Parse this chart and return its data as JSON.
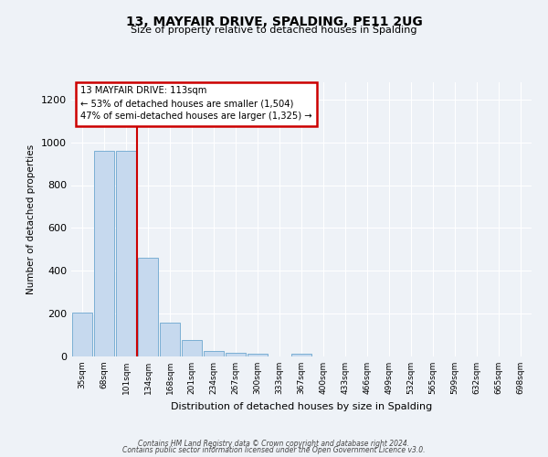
{
  "title": "13, MAYFAIR DRIVE, SPALDING, PE11 2UG",
  "subtitle": "Size of property relative to detached houses in Spalding",
  "xlabel": "Distribution of detached houses by size in Spalding",
  "ylabel": "Number of detached properties",
  "bar_labels": [
    "35sqm",
    "68sqm",
    "101sqm",
    "134sqm",
    "168sqm",
    "201sqm",
    "234sqm",
    "267sqm",
    "300sqm",
    "333sqm",
    "367sqm",
    "400sqm",
    "433sqm",
    "466sqm",
    "499sqm",
    "532sqm",
    "565sqm",
    "599sqm",
    "632sqm",
    "665sqm",
    "698sqm"
  ],
  "bar_values": [
    203,
    958,
    958,
    459,
    160,
    75,
    27,
    17,
    12,
    0,
    12,
    0,
    0,
    0,
    0,
    0,
    0,
    0,
    0,
    0,
    0
  ],
  "bar_color": "#c6d9ee",
  "bar_edgecolor": "#7bafd4",
  "vline_x_idx": 2,
  "vline_color": "#cc0000",
  "annotation_title": "13 MAYFAIR DRIVE: 113sqm",
  "annotation_line1": "← 53% of detached houses are smaller (1,504)",
  "annotation_line2": "47% of semi-detached houses are larger (1,325) →",
  "annotation_box_edgecolor": "#cc0000",
  "ylim": [
    0,
    1280
  ],
  "yticks": [
    0,
    200,
    400,
    600,
    800,
    1000,
    1200
  ],
  "footer1": "Contains HM Land Registry data © Crown copyright and database right 2024.",
  "footer2": "Contains public sector information licensed under the Open Government Licence v3.0.",
  "bg_color": "#eef2f7",
  "plot_bg_color": "#eef2f7"
}
